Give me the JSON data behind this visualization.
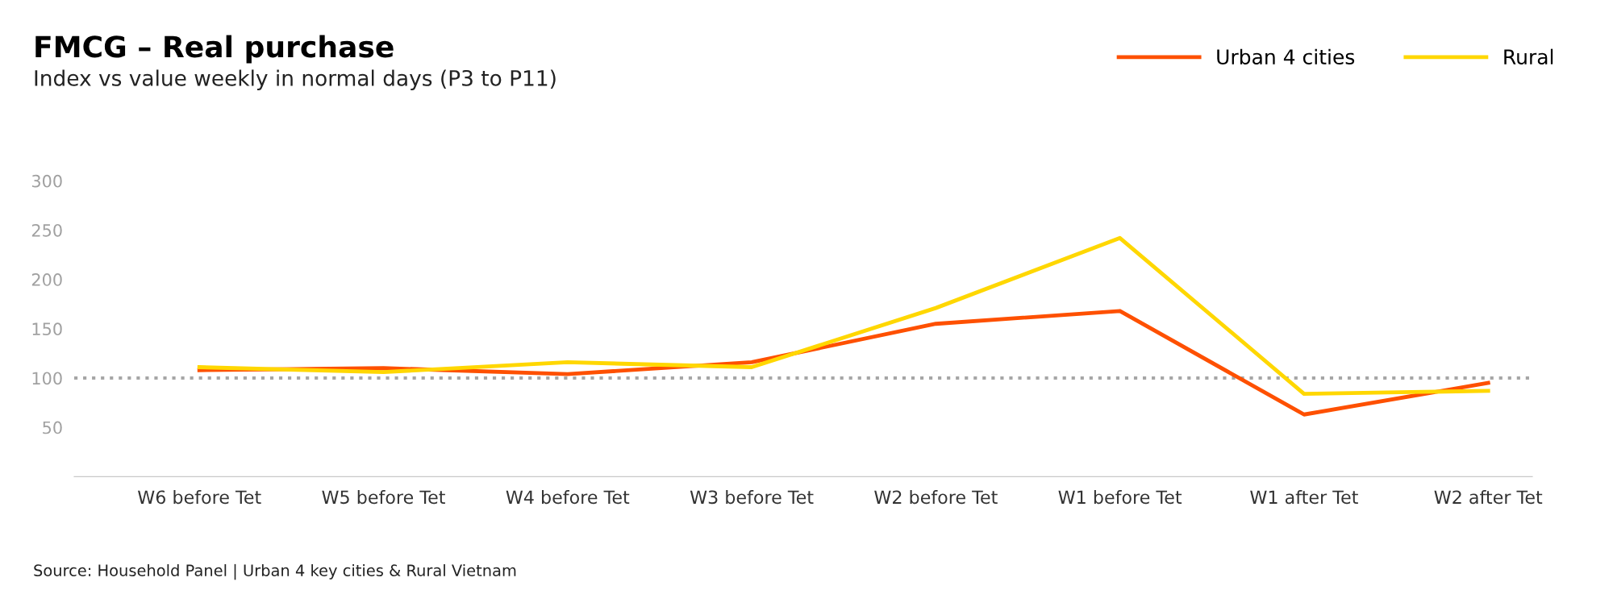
{
  "chart_data": {
    "type": "line",
    "title": "FMCG – Real purchase",
    "subtitle": "Index vs value weekly in normal days (P3 to P11)",
    "categories": [
      "W6 before Tet",
      "W5 before Tet",
      "W4 before Tet",
      "W3 before Tet",
      "W2 before Tet",
      "W1 before Tet",
      "W1 after Tet",
      "W2 after Tet"
    ],
    "series": [
      {
        "name": "Urban 4 cities",
        "color": "#fe5000",
        "values": [
          108,
          110,
          104,
          116,
          155,
          168,
          63,
          95
        ]
      },
      {
        "name": "Rural",
        "color": "#ffd700",
        "values": [
          111,
          106,
          116,
          111,
          171,
          242,
          84,
          87
        ]
      }
    ],
    "ylim": [
      0,
      300
    ],
    "yticks": [
      50,
      100,
      150,
      200,
      250,
      300
    ],
    "ref_lines": [
      {
        "axis": "y",
        "value": 100,
        "color": "#a6a6a6",
        "line_style": "dotted"
      }
    ],
    "grid": false,
    "legend": "top right",
    "marker": "none",
    "line_style": "solid",
    "annotations": [
      "Source: Household Panel | Urban 4 key cities & Rural Vietnam"
    ]
  }
}
